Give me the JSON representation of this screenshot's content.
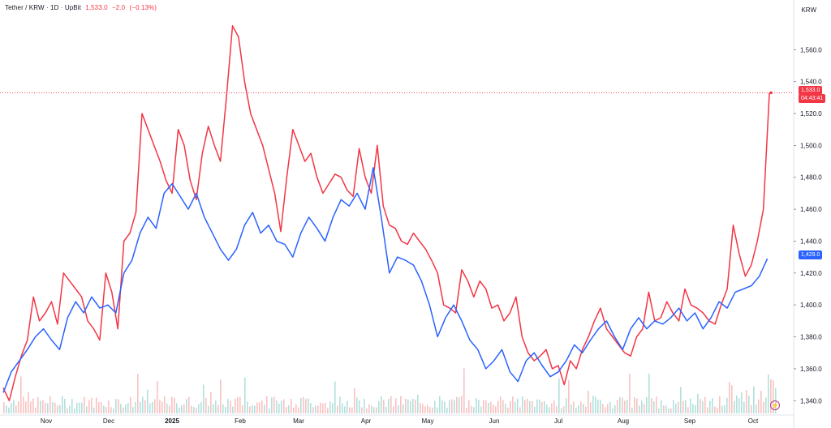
{
  "header": {
    "symbol": "Tether / KRW · 1D · UpBit",
    "price": "1,533.0",
    "change": "−2.0",
    "change_pct": "(−0.13%)"
  },
  "axis": {
    "currency": "KRW"
  },
  "badges": {
    "last_price": "1,533.0",
    "countdown": "04:43:41",
    "second_series": "1,429.0"
  },
  "lightning_icon": "⚡",
  "colors": {
    "red_series": "#f23645",
    "blue_series": "#2962ff",
    "up_volume": "#26a69a",
    "down_volume": "#ef5350"
  },
  "chart_data": {
    "type": "line",
    "yticks": [
      "1,340.0",
      "1,360.0",
      "1,380.0",
      "1,400.0",
      "1,420.0",
      "1,440.0",
      "1,460.0",
      "1,480.0",
      "1,500.0",
      "1,520.0",
      "1,540.0",
      "1,560.0"
    ],
    "xticks": [
      "Nov",
      "Dec",
      "2025",
      "Feb",
      "Mar",
      "Apr",
      "May",
      "Jun",
      "Jul",
      "Aug",
      "Sep",
      "Oct"
    ],
    "ylim": [
      1332,
      1582
    ],
    "series": [
      {
        "name": "",
        "color": "#f23645",
        "points": [
          [
            0,
            1348
          ],
          [
            0.3,
            1340
          ],
          [
            0.6,
            1355
          ],
          [
            0.9,
            1368
          ],
          [
            1.2,
            1378
          ],
          [
            1.5,
            1405
          ],
          [
            1.8,
            1390
          ],
          [
            2.1,
            1395
          ],
          [
            2.4,
            1402
          ],
          [
            2.7,
            1388
          ],
          [
            3.0,
            1420
          ],
          [
            3.3,
            1415
          ],
          [
            3.6,
            1410
          ],
          [
            3.9,
            1405
          ],
          [
            4.2,
            1390
          ],
          [
            4.5,
            1385
          ],
          [
            4.8,
            1378
          ],
          [
            5.1,
            1420
          ],
          [
            5.4,
            1408
          ],
          [
            5.7,
            1385
          ],
          [
            6.0,
            1440
          ],
          [
            6.3,
            1445
          ],
          [
            6.6,
            1458
          ],
          [
            6.9,
            1520
          ],
          [
            7.2,
            1510
          ],
          [
            7.5,
            1500
          ],
          [
            7.8,
            1490
          ],
          [
            8.1,
            1478
          ],
          [
            8.4,
            1470
          ],
          [
            8.7,
            1510
          ],
          [
            9.0,
            1500
          ],
          [
            9.3,
            1478
          ],
          [
            9.6,
            1466
          ],
          [
            9.9,
            1495
          ],
          [
            10.2,
            1512
          ],
          [
            10.5,
            1500
          ],
          [
            10.8,
            1490
          ],
          [
            11.1,
            1530
          ],
          [
            11.4,
            1575
          ],
          [
            11.7,
            1568
          ],
          [
            12.0,
            1540
          ],
          [
            12.3,
            1520
          ],
          [
            12.6,
            1510
          ],
          [
            12.9,
            1500
          ],
          [
            13.2,
            1485
          ],
          [
            13.5,
            1470
          ],
          [
            13.8,
            1446
          ],
          [
            14.1,
            1480
          ],
          [
            14.4,
            1510
          ],
          [
            14.7,
            1500
          ],
          [
            15.0,
            1490
          ],
          [
            15.3,
            1495
          ],
          [
            15.6,
            1480
          ],
          [
            15.9,
            1470
          ],
          [
            16.2,
            1476
          ],
          [
            16.5,
            1482
          ],
          [
            16.8,
            1480
          ],
          [
            17.1,
            1472
          ],
          [
            17.4,
            1468
          ],
          [
            17.7,
            1498
          ],
          [
            18.0,
            1480
          ],
          [
            18.3,
            1470
          ],
          [
            18.6,
            1500
          ],
          [
            18.9,
            1462
          ],
          [
            19.2,
            1450
          ],
          [
            19.5,
            1448
          ],
          [
            19.8,
            1440
          ],
          [
            20.1,
            1438
          ],
          [
            20.4,
            1445
          ],
          [
            20.7,
            1440
          ],
          [
            21.0,
            1435
          ],
          [
            21.3,
            1428
          ],
          [
            21.6,
            1420
          ],
          [
            21.9,
            1400
          ],
          [
            22.2,
            1398
          ],
          [
            22.5,
            1395
          ],
          [
            22.8,
            1422
          ],
          [
            23.1,
            1415
          ],
          [
            23.4,
            1405
          ],
          [
            23.7,
            1415
          ],
          [
            24.0,
            1410
          ],
          [
            24.3,
            1398
          ],
          [
            24.6,
            1400
          ],
          [
            24.9,
            1390
          ],
          [
            25.2,
            1395
          ],
          [
            25.5,
            1405
          ],
          [
            25.8,
            1380
          ],
          [
            26.1,
            1370
          ],
          [
            26.4,
            1365
          ],
          [
            26.7,
            1368
          ],
          [
            27.0,
            1372
          ],
          [
            27.3,
            1360
          ],
          [
            27.6,
            1362
          ],
          [
            27.9,
            1350
          ],
          [
            28.2,
            1365
          ],
          [
            28.5,
            1360
          ],
          [
            28.8,
            1372
          ],
          [
            29.1,
            1380
          ],
          [
            29.4,
            1390
          ],
          [
            29.7,
            1398
          ],
          [
            30.0,
            1385
          ],
          [
            30.3,
            1380
          ],
          [
            30.6,
            1375
          ],
          [
            30.9,
            1370
          ],
          [
            31.2,
            1368
          ],
          [
            31.5,
            1380
          ],
          [
            31.8,
            1385
          ],
          [
            32.1,
            1408
          ],
          [
            32.4,
            1390
          ],
          [
            32.7,
            1392
          ],
          [
            33.0,
            1402
          ],
          [
            33.3,
            1395
          ],
          [
            33.6,
            1390
          ],
          [
            33.9,
            1410
          ],
          [
            34.2,
            1400
          ],
          [
            34.5,
            1398
          ],
          [
            34.8,
            1395
          ],
          [
            35.1,
            1390
          ],
          [
            35.4,
            1388
          ],
          [
            35.7,
            1400
          ],
          [
            36.0,
            1410
          ],
          [
            36.3,
            1450
          ],
          [
            36.6,
            1432
          ],
          [
            36.9,
            1418
          ],
          [
            37.2,
            1425
          ],
          [
            37.5,
            1440
          ],
          [
            37.8,
            1460
          ],
          [
            38.1,
            1533
          ]
        ]
      }
    ]
  }
}
